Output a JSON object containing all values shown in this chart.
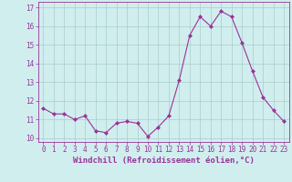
{
  "x": [
    0,
    1,
    2,
    3,
    4,
    5,
    6,
    7,
    8,
    9,
    10,
    11,
    12,
    13,
    14,
    15,
    16,
    17,
    18,
    19,
    20,
    21,
    22,
    23
  ],
  "y": [
    11.6,
    11.3,
    11.3,
    11.0,
    11.2,
    10.4,
    10.3,
    10.8,
    10.9,
    10.8,
    10.1,
    10.6,
    11.2,
    13.1,
    15.5,
    16.5,
    16.0,
    16.8,
    16.5,
    15.1,
    13.6,
    12.2,
    11.5,
    10.9
  ],
  "line_color": "#993399",
  "marker": "D",
  "markersize": 2.0,
  "bg_color": "#d0eeee",
  "grid_color": "#aacccc",
  "xlabel": "Windchill (Refroidissement éolien,°C)",
  "xlim": [
    -0.5,
    23.5
  ],
  "ylim": [
    9.8,
    17.3
  ],
  "yticks": [
    10,
    11,
    12,
    13,
    14,
    15,
    16,
    17
  ],
  "xticks": [
    0,
    1,
    2,
    3,
    4,
    5,
    6,
    7,
    8,
    9,
    10,
    11,
    12,
    13,
    14,
    15,
    16,
    17,
    18,
    19,
    20,
    21,
    22,
    23
  ],
  "tick_color": "#993399",
  "label_color": "#993399",
  "axis_fontsize": 5.5,
  "xlabel_fontsize": 6.5
}
